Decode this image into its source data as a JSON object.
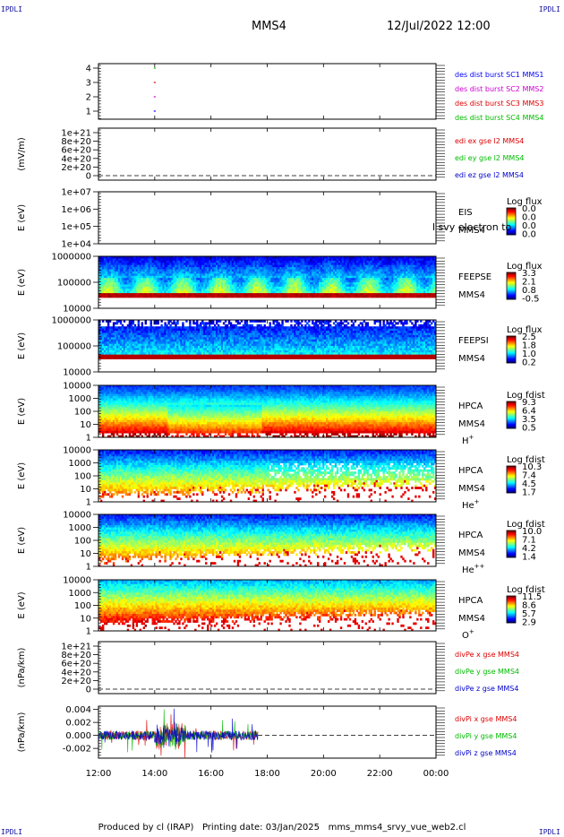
{
  "header": {
    "corner_tl": "IPDLI",
    "corner_tr": "IPDLI",
    "corner_bl": "IPDLI",
    "corner_br": "IPDLI",
    "spacecraft": "MMS4",
    "datetime": "12/Jul/2022 12:00"
  },
  "footer": {
    "produced_by": "Produced by cl (IRAP)",
    "printing_date": "Printing date: 03/Jan/2025",
    "file": "mms_mms4_srvy_vue_web2.cl"
  },
  "colors": {
    "mms1": "#0000ff",
    "mms2": "#cc00cc",
    "mms3": "#dd0000",
    "mms4": "#00bb00",
    "x": "#dd0000",
    "y": "#00bb00",
    "z": "#0000cc"
  },
  "chart_data": [
    {
      "id": "burst",
      "type": "scatter",
      "yticks": [
        "1",
        "2",
        "3",
        "4"
      ],
      "ylim": [
        0.5,
        4.5
      ],
      "series": [
        {
          "name": "des dist burst SC1 MMS1",
          "color": "#0000ff",
          "y": 1,
          "x": [
            "13:58",
            "14:02"
          ]
        },
        {
          "name": "des dist burst SC2 MMS2",
          "color": "#cc00cc",
          "y": 2,
          "x": [
            "13:58",
            "14:02"
          ]
        },
        {
          "name": "des dist burst SC3 MMS3",
          "color": "#dd0000",
          "y": 3,
          "x": [
            "13:58",
            "14:02"
          ]
        },
        {
          "name": "des dist burst SC4 MMS4",
          "color": "#00bb00",
          "y": 4,
          "x": [
            "13:58",
            "14:02"
          ]
        }
      ]
    },
    {
      "id": "edi",
      "type": "line",
      "ylabel": "(mV/m)",
      "yticks": [
        "1e+21",
        "8e+20",
        "6e+20",
        "4e+20",
        "2e+20",
        "0"
      ],
      "series": [
        {
          "name": "edi ex gse l2 MMS4",
          "color": "#dd0000"
        },
        {
          "name": "edi ey gse l2 MMS4",
          "color": "#00bb00"
        },
        {
          "name": "edi ez gse l2 MMS4",
          "color": "#0000cc"
        }
      ]
    },
    {
      "id": "eis",
      "type": "heatmap",
      "ylabel": "E (eV)",
      "yticks": [
        "1e+07",
        "1e+06",
        "1e+05",
        "1e+04"
      ],
      "label_lines": [
        "EIS",
        "MMS4"
      ],
      "overlay": "l svy electron to",
      "cbar_title": "Log flux",
      "cbar_ticks": [
        "0.0",
        "0.0",
        "0.0",
        "0.0"
      ]
    },
    {
      "id": "feepse",
      "type": "heatmap",
      "ylabel": "E (eV)",
      "yticks": [
        "1000000",
        "100000",
        "10000"
      ],
      "label_lines": [
        "FEEPSE",
        "MMS4"
      ],
      "cbar_title": "Log flux",
      "cbar_ticks": [
        "3.3",
        "2.1",
        "0.8",
        "-0.5"
      ]
    },
    {
      "id": "feepsi",
      "type": "heatmap",
      "ylabel": "E (eV)",
      "yticks": [
        "1000000",
        "100000",
        "10000"
      ],
      "label_lines": [
        "FEEPSI",
        "MMS4"
      ],
      "cbar_title": "Log flux",
      "cbar_ticks": [
        "2.5",
        "1.8",
        "1.0",
        "0.2"
      ]
    },
    {
      "id": "hpca_h",
      "type": "heatmap",
      "ylabel": "E (eV)",
      "yticks": [
        "10000",
        "1000",
        "100",
        "10",
        "1"
      ],
      "label_lines": [
        "HPCA",
        "MMS4"
      ],
      "species": "H",
      "species_sup": "+",
      "cbar_title": "Log fdist",
      "cbar_ticks": [
        "9.3",
        "6.4",
        "3.5",
        "0.5"
      ]
    },
    {
      "id": "hpca_he",
      "type": "heatmap",
      "ylabel": "E (eV)",
      "yticks": [
        "10000",
        "1000",
        "100",
        "10",
        "1"
      ],
      "label_lines": [
        "HPCA",
        "MMS4"
      ],
      "species": "He",
      "species_sup": "+",
      "cbar_title": "Log fdist",
      "cbar_ticks": [
        "10.3",
        "7.4",
        "4.5",
        "1.7"
      ]
    },
    {
      "id": "hpca_hepp",
      "type": "heatmap",
      "ylabel": "E (eV)",
      "yticks": [
        "10000",
        "1000",
        "100",
        "10",
        "1"
      ],
      "label_lines": [
        "HPCA",
        "MMS4"
      ],
      "species": "He",
      "species_sup": "++",
      "cbar_title": "Log fdist",
      "cbar_ticks": [
        "10.0",
        "7.1",
        "4.2",
        "1.4"
      ]
    },
    {
      "id": "hpca_o",
      "type": "heatmap",
      "ylabel": "E (eV)",
      "yticks": [
        "10000",
        "1000",
        "100",
        "10",
        "1"
      ],
      "label_lines": [
        "HPCA",
        "MMS4"
      ],
      "species": "O",
      "species_sup": "+",
      "cbar_title": "Log fdist",
      "cbar_ticks": [
        "11.5",
        "8.6",
        "5.7",
        "2.9"
      ]
    },
    {
      "id": "divpe",
      "type": "line",
      "ylabel": "(nPa/km)",
      "yticks": [
        "1e+21",
        "8e+20",
        "6e+20",
        "4e+20",
        "2e+20",
        "0"
      ],
      "series": [
        {
          "name": "divPe x gse MMS4",
          "color": "#dd0000"
        },
        {
          "name": "divPe y gse MMS4",
          "color": "#00bb00"
        },
        {
          "name": "divPe z gse MMS4",
          "color": "#0000cc"
        }
      ]
    },
    {
      "id": "divpi",
      "type": "line",
      "ylabel": "(nPa/km)",
      "yticks": [
        "0.004",
        "0.002",
        "0.000",
        "-0.002"
      ],
      "ylim": [
        -0.0035,
        0.0045
      ],
      "data_end": "17:40",
      "series": [
        {
          "name": "divPi x gse MMS4",
          "color": "#dd0000"
        },
        {
          "name": "divPi y gse MMS4",
          "color": "#00bb00"
        },
        {
          "name": "divPi z gse MMS4",
          "color": "#0000cc"
        }
      ]
    }
  ],
  "xaxis": {
    "ticks": [
      "12:00",
      "14:00",
      "16:00",
      "18:00",
      "20:00",
      "22:00",
      "00:00"
    ],
    "range": [
      "12:00",
      "00:00"
    ]
  }
}
